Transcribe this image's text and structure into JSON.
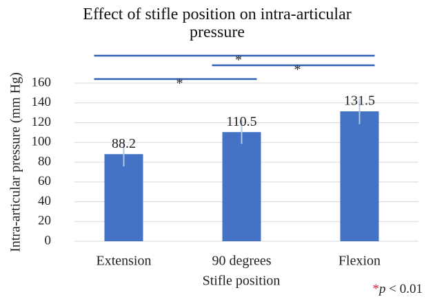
{
  "chart_data": {
    "type": "bar",
    "title": "Effect of stifle position on intra-articular pressure",
    "x_label": "Stifle position",
    "y_label": "Intra-articular pressure (mm Hg)",
    "categories": [
      "Extension",
      "90 degrees",
      "Flexion"
    ],
    "values": [
      88.2,
      110.5,
      131.5
    ],
    "errors": [
      12.5,
      12,
      13
    ],
    "color": "#4472c4",
    "error_color": "#b4c7e7",
    "ylim": [
      0,
      160
    ],
    "yticks": [
      0,
      20,
      40,
      60,
      80,
      100,
      120,
      140,
      160
    ],
    "grid": true,
    "significance": [
      {
        "pair": [
          "Extension",
          "Flexion"
        ],
        "label": "*"
      },
      {
        "pair": [
          "90 degrees",
          "Flexion"
        ],
        "label": "*"
      },
      {
        "pair": [
          "Extension",
          "90 degrees"
        ],
        "label": "*"
      }
    ],
    "footnote": {
      "symbol": "*",
      "variable": "p",
      "condition": "< 0.01"
    }
  }
}
